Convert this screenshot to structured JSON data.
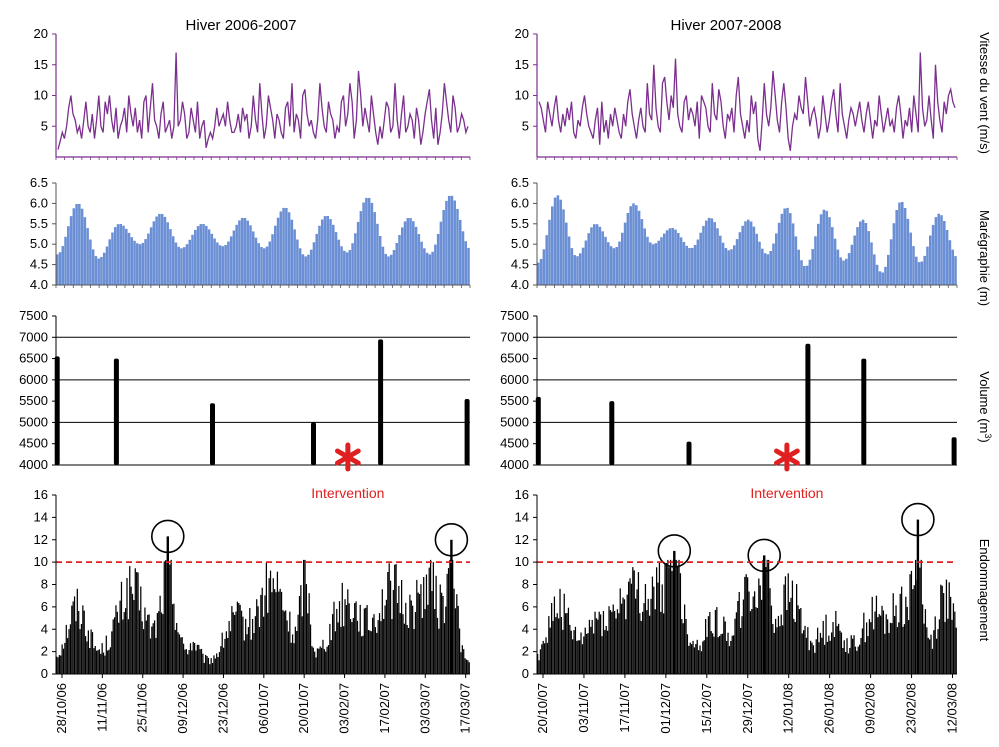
{
  "colors": {
    "wind": "#7b2f8e",
    "tide": "#6b8fd4",
    "volume": "#000000",
    "damage": "#000000",
    "threshold": "#e02020",
    "intervention": "#e02020",
    "grid": "#000000"
  },
  "column_titles": [
    "Hiver 2006-2007",
    "Hiver 2007-2008"
  ],
  "row_labels": {
    "wind": "Vitesse du vent (m/s)",
    "tide": "Marégraphie (m)",
    "volume_prefix": "Volume (m",
    "volume_sup": "3",
    "volume_suffix": ")",
    "damage": "Endommagement"
  },
  "intervention_label": "Intervention",
  "chart_data": [
    {
      "panel": "wind-2006-2007",
      "type": "line",
      "x_range": [
        "28/10/06",
        "26/03/07"
      ],
      "ylim": [
        0,
        20
      ],
      "yticks": [
        5,
        10,
        15,
        20
      ],
      "values": [
        1.2,
        2.5,
        4,
        3,
        5,
        8,
        10,
        7,
        6,
        4,
        5,
        3,
        6,
        9,
        5,
        4,
        7,
        3,
        6,
        10,
        5,
        4,
        9,
        7,
        10,
        6,
        4,
        8,
        3,
        5,
        6,
        8,
        4,
        10,
        7,
        5,
        8,
        4,
        6,
        3,
        9,
        10,
        4,
        8,
        12,
        6,
        5,
        3,
        7,
        9,
        4,
        5,
        6,
        3,
        5,
        17,
        5,
        6,
        9,
        7,
        3,
        4,
        8,
        6,
        4,
        9,
        3,
        5,
        6,
        1.5,
        3,
        4,
        3,
        5,
        8,
        5,
        6,
        7,
        5,
        9,
        6,
        4,
        4,
        5,
        7,
        4,
        8,
        6,
        7,
        3,
        5,
        10,
        6,
        4,
        12,
        7,
        3,
        5,
        10,
        8,
        6,
        3,
        7,
        6,
        4,
        3,
        8,
        9,
        5,
        12,
        4,
        7,
        6,
        3,
        10,
        11,
        7,
        5,
        6,
        4,
        3,
        6,
        12,
        8,
        5,
        4,
        9,
        7,
        6,
        3,
        5,
        4,
        9,
        10,
        5,
        7,
        12,
        9,
        3,
        6,
        14,
        10,
        5,
        8,
        6,
        4,
        10,
        7,
        4,
        2,
        5,
        3,
        6,
        9,
        8,
        4,
        5,
        12,
        6,
        3,
        7,
        10,
        4,
        5,
        7,
        6,
        3,
        8,
        6,
        2,
        4,
        7,
        9,
        11,
        6,
        3,
        8,
        2,
        4,
        7,
        12,
        9,
        6,
        4,
        10,
        8,
        4,
        5,
        7,
        6,
        4,
        5
      ]
    },
    {
      "panel": "wind-2007-2008",
      "type": "line",
      "x_range": [
        "20/10/07",
        "18/03/08"
      ],
      "ylim": [
        0,
        20
      ],
      "yticks": [
        5,
        10,
        15,
        20
      ],
      "values": [
        9,
        8,
        6,
        4,
        9,
        7,
        5,
        8,
        10,
        6,
        4,
        7,
        5,
        8,
        6,
        9,
        4,
        3,
        6,
        5,
        8,
        10,
        7,
        5,
        4,
        3,
        6,
        8,
        2,
        9,
        4,
        6,
        3,
        7,
        5,
        8,
        6,
        4,
        3,
        7,
        5,
        9,
        11,
        7,
        5,
        3,
        6,
        8,
        5,
        4,
        12,
        7,
        6,
        15,
        8,
        5,
        4,
        12,
        13,
        9,
        6,
        10,
        8,
        16,
        7,
        5,
        4,
        9,
        10,
        6,
        8,
        7,
        5,
        9,
        3,
        10,
        9,
        8,
        5,
        4,
        12,
        7,
        6,
        11,
        9,
        5,
        3,
        7,
        6,
        8,
        4,
        10,
        13,
        7,
        5,
        3,
        6,
        4,
        10,
        7,
        9,
        3,
        1,
        6,
        12,
        7,
        5,
        8,
        14,
        10,
        6,
        4,
        9,
        12,
        8,
        3,
        1,
        5,
        7,
        6,
        10,
        8,
        7,
        13,
        9,
        5,
        7,
        8,
        6,
        3,
        5,
        10,
        7,
        4,
        6,
        9,
        11,
        7,
        4,
        12,
        7,
        5,
        3,
        6,
        8,
        7,
        5,
        7,
        9,
        6,
        4,
        7,
        9,
        6,
        3,
        6,
        5,
        10,
        7,
        4,
        6,
        8,
        5,
        6,
        4,
        8,
        10,
        7,
        3,
        6,
        5,
        8,
        4,
        10,
        7,
        4,
        17,
        8,
        5,
        6,
        10,
        6,
        3,
        15,
        9,
        6,
        4,
        9,
        7,
        10,
        11,
        9,
        8
      ]
    },
    {
      "panel": "tide-2006-2007",
      "type": "bar",
      "ylim": [
        4.0,
        6.5
      ],
      "yticks": [
        4.0,
        4.5,
        5.0,
        5.5,
        6.0,
        6.5
      ],
      "peaks": [
        6.0,
        5.5,
        5.75,
        5.5,
        5.65,
        5.9,
        5.7,
        6.15,
        5.65,
        6.2
      ],
      "troughs": [
        4.75,
        4.65,
        5.0,
        4.9,
        4.95,
        4.9,
        4.7,
        4.8,
        4.7,
        4.75,
        4.85
      ]
    },
    {
      "panel": "tide-2007-2008",
      "type": "bar",
      "ylim": [
        4.0,
        6.5
      ],
      "yticks": [
        4.0,
        4.5,
        5.0,
        5.5,
        6.0,
        6.5
      ],
      "peaks": [
        6.2,
        5.5,
        6.0,
        5.4,
        5.65,
        5.6,
        5.9,
        5.85,
        5.6,
        6.05,
        5.75
      ],
      "troughs": [
        4.55,
        4.7,
        4.9,
        5.0,
        4.9,
        4.85,
        4.75,
        4.45,
        4.6,
        4.3,
        4.55,
        4.65
      ]
    },
    {
      "panel": "volume-2006-2007",
      "type": "bar",
      "ylim": [
        4000,
        7500
      ],
      "yticks": [
        4000,
        4500,
        5000,
        5500,
        6000,
        6500,
        7000,
        7500
      ],
      "gridlines": [
        5000,
        6000,
        7000
      ],
      "events": [
        {
          "pos": 0.003,
          "value": 6550
        },
        {
          "pos": 0.146,
          "value": 6500
        },
        {
          "pos": 0.378,
          "value": 5450
        },
        {
          "pos": 0.622,
          "value": 5000
        },
        {
          "pos": 0.784,
          "value": 6950
        },
        {
          "pos": 0.993,
          "value": 5550
        }
      ],
      "intervention": {
        "pos": 0.705
      }
    },
    {
      "panel": "volume-2007-2008",
      "type": "bar",
      "ylim": [
        4000,
        7500
      ],
      "yticks": [
        4000,
        4500,
        5000,
        5500,
        6000,
        6500,
        7000,
        7500
      ],
      "gridlines": [
        5000,
        6000,
        7000
      ],
      "events": [
        {
          "pos": 0.003,
          "value": 5600
        },
        {
          "pos": 0.178,
          "value": 5500
        },
        {
          "pos": 0.362,
          "value": 4550
        },
        {
          "pos": 0.645,
          "value": 6850
        },
        {
          "pos": 0.778,
          "value": 6500
        },
        {
          "pos": 0.993,
          "value": 4650
        }
      ],
      "intervention": {
        "pos": 0.595
      }
    },
    {
      "panel": "damage-2006-2007",
      "type": "bar",
      "ylim": [
        0,
        16
      ],
      "yticks": [
        0,
        2,
        4,
        6,
        8,
        10,
        12,
        14,
        16
      ],
      "threshold": 10,
      "xticks": [
        "28/10/06",
        "11/11/06",
        "25/11/06",
        "09/12/06",
        "23/12/06",
        "06/01/07",
        "20/01/07",
        "03/02/07",
        "17/02/07",
        "03/03/07",
        "17/03/07"
      ],
      "circles": [
        {
          "pos": 0.27,
          "value": 12.3
        },
        {
          "pos": 0.955,
          "value": 12.0
        }
      ]
    },
    {
      "panel": "damage-2007-2008",
      "type": "bar",
      "ylim": [
        0,
        16
      ],
      "yticks": [
        0,
        2,
        4,
        6,
        8,
        10,
        12,
        14,
        16
      ],
      "threshold": 10,
      "xticks": [
        "20/10/07",
        "03/11/07",
        "17/11/07",
        "01/12/07",
        "15/12/07",
        "29/12/07",
        "12/01/08",
        "26/01/08",
        "09/02/08",
        "23/02/08",
        "12/03/08"
      ],
      "circles": [
        {
          "pos": 0.327,
          "value": 11.0
        },
        {
          "pos": 0.541,
          "value": 10.6
        },
        {
          "pos": 0.907,
          "value": 13.8
        }
      ]
    }
  ]
}
